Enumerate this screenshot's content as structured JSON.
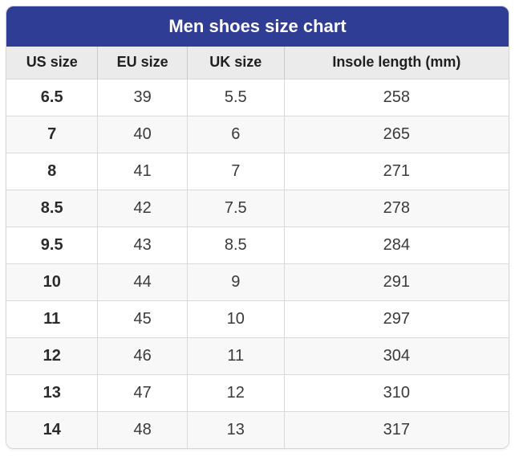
{
  "title": "Men shoes size chart",
  "colors": {
    "title_bar_bg": "#2f3d95",
    "title_text": "#ffffff",
    "column_header_bg": "#ebebeb",
    "row_bg": "#ffffff",
    "row_alt_bg": "#f8f8f8",
    "grid_border": "#d9d9d9",
    "text": "#3a3a3a"
  },
  "chart_data": {
    "type": "table",
    "title": "Men shoes size chart",
    "columns": [
      "US size",
      "EU size",
      "UK size",
      "Insole length (mm)"
    ],
    "rows": [
      [
        "6.5",
        "39",
        "5.5",
        "258"
      ],
      [
        "7",
        "40",
        "6",
        "265"
      ],
      [
        "8",
        "41",
        "7",
        "271"
      ],
      [
        "8.5",
        "42",
        "7.5",
        "278"
      ],
      [
        "9.5",
        "43",
        "8.5",
        "284"
      ],
      [
        "10",
        "44",
        "9",
        "291"
      ],
      [
        "11",
        "45",
        "10",
        "297"
      ],
      [
        "12",
        "46",
        "11",
        "304"
      ],
      [
        "13",
        "47",
        "12",
        "310"
      ],
      [
        "14",
        "48",
        "13",
        "317"
      ]
    ]
  }
}
